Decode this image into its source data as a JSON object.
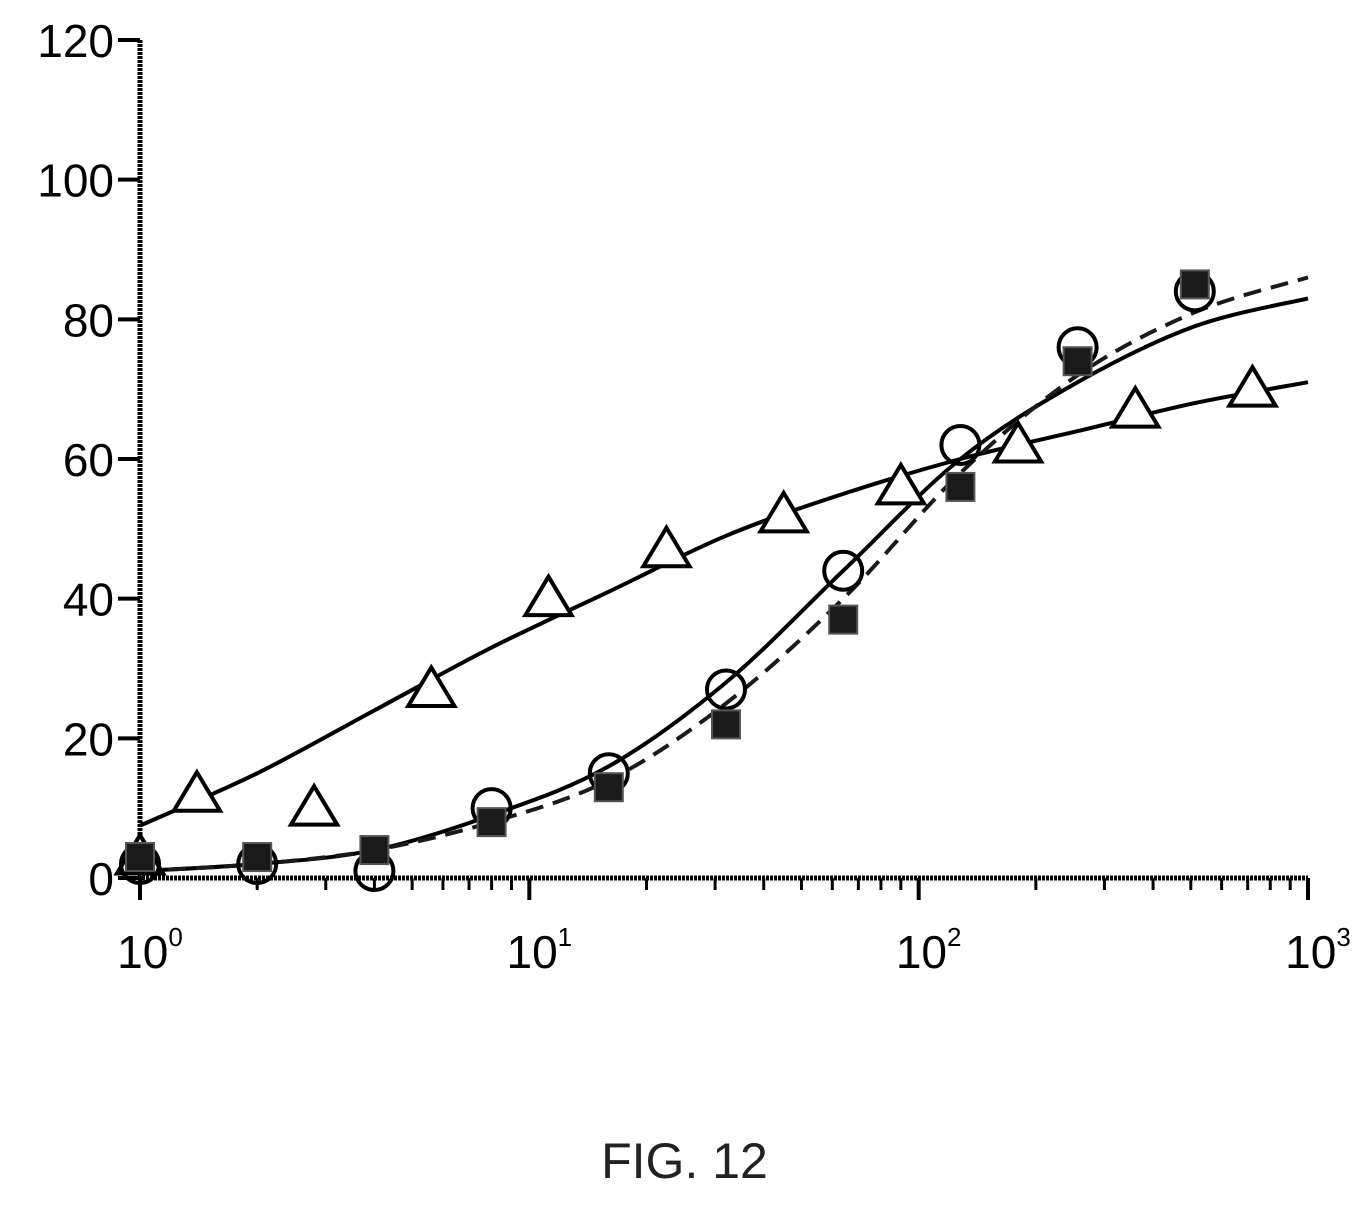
{
  "caption": "FIG. 12",
  "chart_data": {
    "type": "scatter",
    "title": "",
    "xlabel": "",
    "ylabel": "",
    "x_scale": "log",
    "xlim": [
      1,
      1000
    ],
    "ylim": [
      0,
      120
    ],
    "grid": false,
    "legend": "none",
    "y_ticks": [
      0,
      20,
      40,
      60,
      80,
      100,
      120
    ],
    "x_ticks": [
      {
        "value": 1,
        "base": "10",
        "exp": "0"
      },
      {
        "value": 10,
        "base": "10",
        "exp": "1"
      },
      {
        "value": 100,
        "base": "10",
        "exp": "2"
      },
      {
        "value": 1000,
        "base": "10",
        "exp": "3"
      }
    ],
    "series": [
      {
        "marker": "triangle-open",
        "line": "solid",
        "color": "#000000",
        "x": [
          1,
          1.4,
          2.8,
          5.6,
          11.2,
          22.5,
          45,
          90,
          180,
          360,
          720
        ],
        "y": [
          3,
          12,
          10,
          27,
          40,
          47,
          52,
          56,
          62,
          67,
          70
        ],
        "fit": {
          "x": [
            1,
            2,
            4,
            8,
            16,
            32,
            64,
            128,
            256,
            512,
            1000
          ],
          "y": [
            7.5,
            15,
            24,
            33,
            41,
            49,
            55,
            60,
            64,
            68,
            71
          ]
        }
      },
      {
        "marker": "circle-open",
        "line": "solid",
        "color": "#000000",
        "x": [
          1,
          2,
          4,
          8,
          16,
          32,
          64,
          128,
          256,
          512
        ],
        "y": [
          2,
          2,
          1,
          10,
          15,
          27,
          44,
          62,
          76,
          84
        ],
        "fit": {
          "x": [
            1,
            2,
            4,
            8,
            16,
            32,
            64,
            128,
            256,
            512,
            1000
          ],
          "y": [
            1,
            2,
            4,
            9,
            16,
            28,
            44,
            60,
            71,
            79,
            83
          ]
        }
      },
      {
        "marker": "square-filled",
        "line": "dashed",
        "color": "#1a1a1a",
        "x": [
          1,
          2,
          4,
          8,
          16,
          32,
          64,
          128,
          256,
          512
        ],
        "y": [
          3,
          3,
          4,
          8,
          13,
          22,
          37,
          56,
          74,
          85
        ],
        "fit": {
          "x": [
            1,
            2,
            4,
            8,
            16,
            32,
            64,
            128,
            256,
            512,
            1000
          ],
          "y": [
            1,
            2,
            4,
            8,
            14,
            25,
            40,
            58,
            72,
            81,
            86
          ]
        }
      }
    ]
  }
}
